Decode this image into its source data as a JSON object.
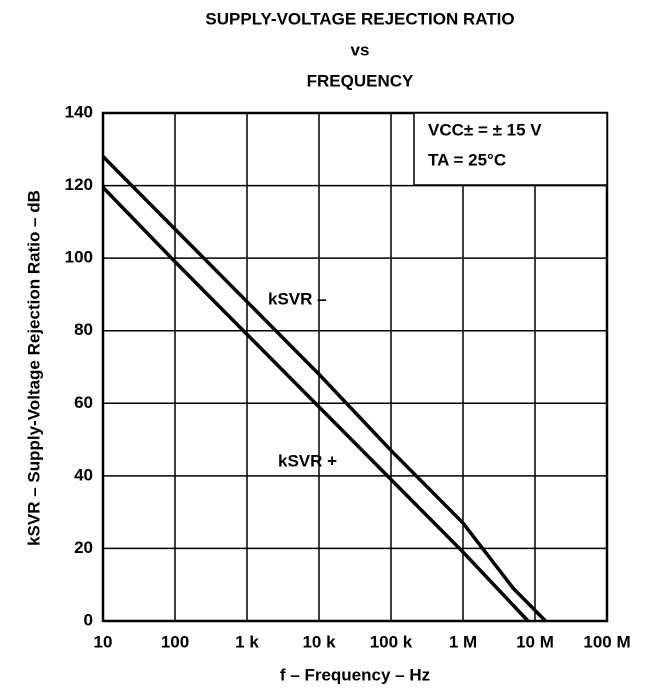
{
  "chart_data": {
    "type": "line",
    "title": [
      "SUPPLY-VOLTAGE REJECTION RATIO",
      "vs",
      "FREQUENCY"
    ],
    "xlabel": "f – Frequency – Hz",
    "ylabel": "kSVR – Supply-Voltage Rejection Ratio – dB",
    "annotations": [
      "VCC± = ± 15 V",
      "TA = 25°C"
    ],
    "xscale": "log",
    "xlim": [
      10,
      100000000
    ],
    "xticks": [
      10,
      100,
      {
        "value": 1000,
        "label": "1 k"
      },
      {
        "value": 10000,
        "label": "10 k"
      },
      {
        "value": 100000,
        "label": "100 k"
      },
      {
        "value": 1000000,
        "label": "1 M"
      },
      {
        "value": 10000000,
        "label": "10 M"
      },
      {
        "value": 100000000,
        "label": "100 M"
      }
    ],
    "ylim": [
      0,
      140
    ],
    "yticks": [
      0,
      20,
      40,
      60,
      80,
      100,
      120,
      140
    ],
    "grid": true,
    "series": [
      {
        "name": "kSVR –",
        "color": "#000000",
        "x": [
          10,
          100,
          1000,
          10000,
          100000,
          1000000,
          5000000,
          14000000
        ],
        "values": [
          128,
          108,
          88,
          68,
          47,
          27,
          9,
          0
        ]
      },
      {
        "name": "kSVR +",
        "color": "#000000",
        "x": [
          10,
          100,
          1000,
          10000,
          100000,
          1000000,
          8000000
        ],
        "values": [
          119.5,
          99,
          79,
          59,
          39,
          19,
          0
        ]
      }
    ]
  }
}
